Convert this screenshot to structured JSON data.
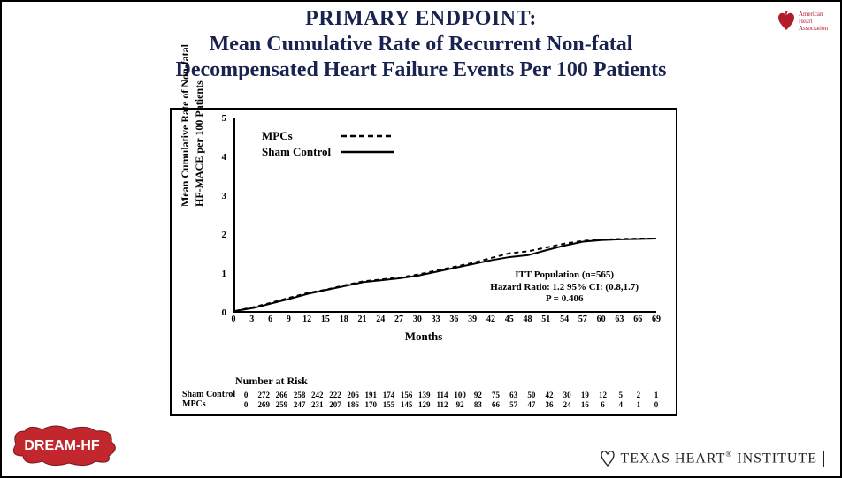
{
  "title": {
    "line1": "PRIMARY ENDPOINT:",
    "line2": "Mean Cumulative Rate of Recurrent Non-fatal",
    "line3": "Decompensated Heart Failure Events Per 100 Patients",
    "color": "#1a2250",
    "fontsize": 24,
    "fontweight": 700
  },
  "aha_logo": {
    "org_line1": "American",
    "org_line2": "Heart",
    "org_line3": "Association",
    "color": "#b41c2e"
  },
  "chart": {
    "type": "line",
    "ylabel_line1": "Mean Cumulative Rate of Non-fatal",
    "ylabel_line2": "HF-MACE per 100 Patients",
    "xlabel": "Months",
    "xlim": [
      0,
      69
    ],
    "ylim": [
      0,
      5
    ],
    "ytick_step": 1,
    "xtick_step": 3,
    "x_ticks": [
      0,
      3,
      6,
      9,
      12,
      15,
      18,
      21,
      24,
      27,
      30,
      33,
      36,
      39,
      42,
      45,
      48,
      51,
      54,
      57,
      60,
      63,
      66,
      69
    ],
    "y_ticks": [
      0,
      1,
      2,
      3,
      4,
      5
    ],
    "background_color": "#ffffff",
    "axis_color": "#000000",
    "label_fontsize": 12,
    "tick_fontsize": 10,
    "line_width": 2,
    "series": {
      "mpcs": {
        "label": "MPCs",
        "style": "dashed",
        "dash": "5,4",
        "color": "#000000",
        "x": [
          0,
          3,
          6,
          9,
          12,
          15,
          18,
          21,
          24,
          27,
          30,
          33,
          36,
          39,
          42,
          45,
          48,
          51,
          54,
          57,
          60,
          63,
          66,
          69
        ],
        "y": [
          0,
          0.1,
          0.22,
          0.35,
          0.47,
          0.56,
          0.67,
          0.77,
          0.82,
          0.87,
          0.95,
          1.05,
          1.15,
          1.25,
          1.38,
          1.5,
          1.55,
          1.65,
          1.75,
          1.82,
          1.85,
          1.87,
          1.88,
          1.88
        ]
      },
      "sham": {
        "label": "Sham Control",
        "style": "solid",
        "color": "#000000",
        "x": [
          0,
          3,
          6,
          9,
          12,
          15,
          18,
          21,
          24,
          27,
          30,
          33,
          36,
          39,
          42,
          45,
          48,
          51,
          54,
          57,
          60,
          63,
          66,
          69
        ],
        "y": [
          0,
          0.08,
          0.2,
          0.32,
          0.45,
          0.55,
          0.65,
          0.75,
          0.8,
          0.85,
          0.92,
          1.02,
          1.12,
          1.22,
          1.32,
          1.4,
          1.45,
          1.58,
          1.7,
          1.8,
          1.84,
          1.86,
          1.87,
          1.88
        ]
      }
    },
    "legend": {
      "position": "upper-left",
      "fontsize": 13
    },
    "stats": {
      "line1": "ITT Population (n=565)",
      "line2": "Hazard Ratio: 1.2  95% CI:  (0.8,1.7)",
      "line3": "P = 0.406",
      "fontsize": 11
    },
    "number_at_risk": {
      "header": "Number at Risk",
      "rows": [
        {
          "label": "Sham Control",
          "values": [
            0,
            272,
            266,
            258,
            242,
            222,
            206,
            191,
            174,
            156,
            139,
            114,
            100,
            92,
            75,
            63,
            50,
            42,
            30,
            19,
            12,
            5,
            2,
            1
          ]
        },
        {
          "label": "MPCs",
          "values": [
            0,
            269,
            259,
            247,
            231,
            207,
            186,
            170,
            155,
            145,
            129,
            112,
            92,
            83,
            66,
            57,
            47,
            36,
            24,
            16,
            6,
            4,
            1,
            0
          ]
        }
      ]
    }
  },
  "footer": {
    "thi_prefix_glyph": "♡",
    "thi_text_part1": "TEXAS HEART",
    "thi_text_part2": "INSTITUTE",
    "dream_badge": "DREAM-HF",
    "dream_bg": "#c1272d",
    "dream_fg": "#ffffff"
  }
}
